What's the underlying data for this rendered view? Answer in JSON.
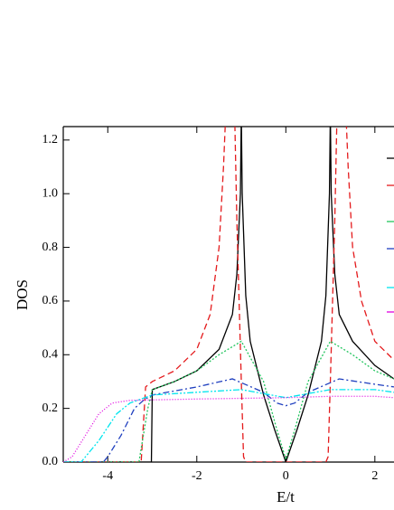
{
  "chart_data": {
    "type": "line",
    "x_label": "E/t",
    "y_label": "DOS",
    "xlim": [
      -5,
      2.43
    ],
    "ylim": [
      0,
      1.25
    ],
    "xticks": [
      -4,
      -2,
      0,
      2
    ],
    "yticks": [
      {
        "value": 0,
        "label": "0.0"
      },
      0.2,
      0.4,
      0.6,
      0.8,
      {
        "value": 1,
        "label": "1.0"
      },
      1.2
    ],
    "legend": "right",
    "series": [
      {
        "color": "#000000",
        "dash": "solid",
        "x": [
          -5,
          -3.02,
          -3,
          -2.5,
          -2,
          -1.5,
          -1.2,
          -1.1,
          -1.02,
          -1,
          -0.98,
          -0.9,
          -0.8,
          -0.5,
          -0.25,
          0,
          0.25,
          0.5,
          0.8,
          0.9,
          0.98,
          1,
          1.02,
          1.1,
          1.2,
          1.5,
          2,
          2.43
        ],
        "values": [
          0,
          0,
          0.27,
          0.3,
          0.34,
          0.42,
          0.55,
          0.7,
          1.0,
          1.3,
          1.0,
          0.62,
          0.45,
          0.25,
          0.12,
          0,
          0.12,
          0.25,
          0.45,
          0.62,
          1.0,
          1.3,
          1.0,
          0.7,
          0.55,
          0.45,
          0.36,
          0.31
        ]
      },
      {
        "color": "#e41a1c",
        "dash": "dashed",
        "x": [
          -5,
          -3.25,
          -3.15,
          -3,
          -2.5,
          -2,
          -1.7,
          -1.5,
          -1.4,
          -1.35,
          -1.15,
          -1.1,
          -1.0,
          -0.95,
          -0.9,
          0.9,
          0.95,
          1.0,
          1.1,
          1.15,
          1.35,
          1.4,
          1.5,
          1.7,
          2,
          2.43
        ],
        "values": [
          0,
          0,
          0.28,
          0.3,
          0.34,
          0.42,
          0.55,
          0.8,
          1.1,
          1.3,
          1.3,
          0.9,
          0.3,
          0.02,
          0,
          0,
          0.02,
          0.3,
          0.9,
          1.3,
          1.3,
          1.1,
          0.8,
          0.6,
          0.45,
          0.38
        ]
      },
      {
        "color": "#22c55e",
        "dash": "dotted",
        "x": [
          -5,
          -3.3,
          -3.1,
          -3,
          -2.5,
          -2,
          -1.5,
          -1,
          -0.5,
          -0.2,
          0,
          0.2,
          0.5,
          1,
          1.5,
          2,
          2.43
        ],
        "values": [
          0,
          0,
          0.2,
          0.27,
          0.3,
          0.34,
          0.4,
          0.45,
          0.3,
          0.12,
          0.01,
          0.12,
          0.3,
          0.45,
          0.4,
          0.34,
          0.31
        ]
      },
      {
        "color": "#1f3fbf",
        "dash": "dashdot",
        "x": [
          -5,
          -4.1,
          -4,
          -3.7,
          -3.4,
          -3.2,
          -3,
          -2,
          -1.2,
          -0.5,
          -0.2,
          0,
          0.2,
          0.5,
          1.2,
          2,
          2.43
        ],
        "values": [
          0,
          0,
          0.02,
          0.1,
          0.2,
          0.23,
          0.25,
          0.28,
          0.31,
          0.26,
          0.22,
          0.21,
          0.22,
          0.26,
          0.31,
          0.29,
          0.28
        ]
      },
      {
        "color": "#00e5ee",
        "dash": "dashdotdot",
        "x": [
          -5,
          -4.6,
          -4.2,
          -3.8,
          -3.5,
          -3,
          -2,
          -1,
          0,
          1,
          2,
          2.43
        ],
        "values": [
          0,
          0,
          0.08,
          0.18,
          0.22,
          0.25,
          0.26,
          0.27,
          0.24,
          0.27,
          0.27,
          0.26
        ]
      },
      {
        "color": "#e000e0",
        "dash": "shortdot",
        "x": [
          -5,
          -4.8,
          -4.5,
          -4.2,
          -3.9,
          -3.5,
          -2,
          0,
          1,
          2,
          2.43
        ],
        "values": [
          0,
          0.02,
          0.1,
          0.18,
          0.22,
          0.23,
          0.235,
          0.24,
          0.245,
          0.245,
          0.24
        ]
      }
    ]
  }
}
